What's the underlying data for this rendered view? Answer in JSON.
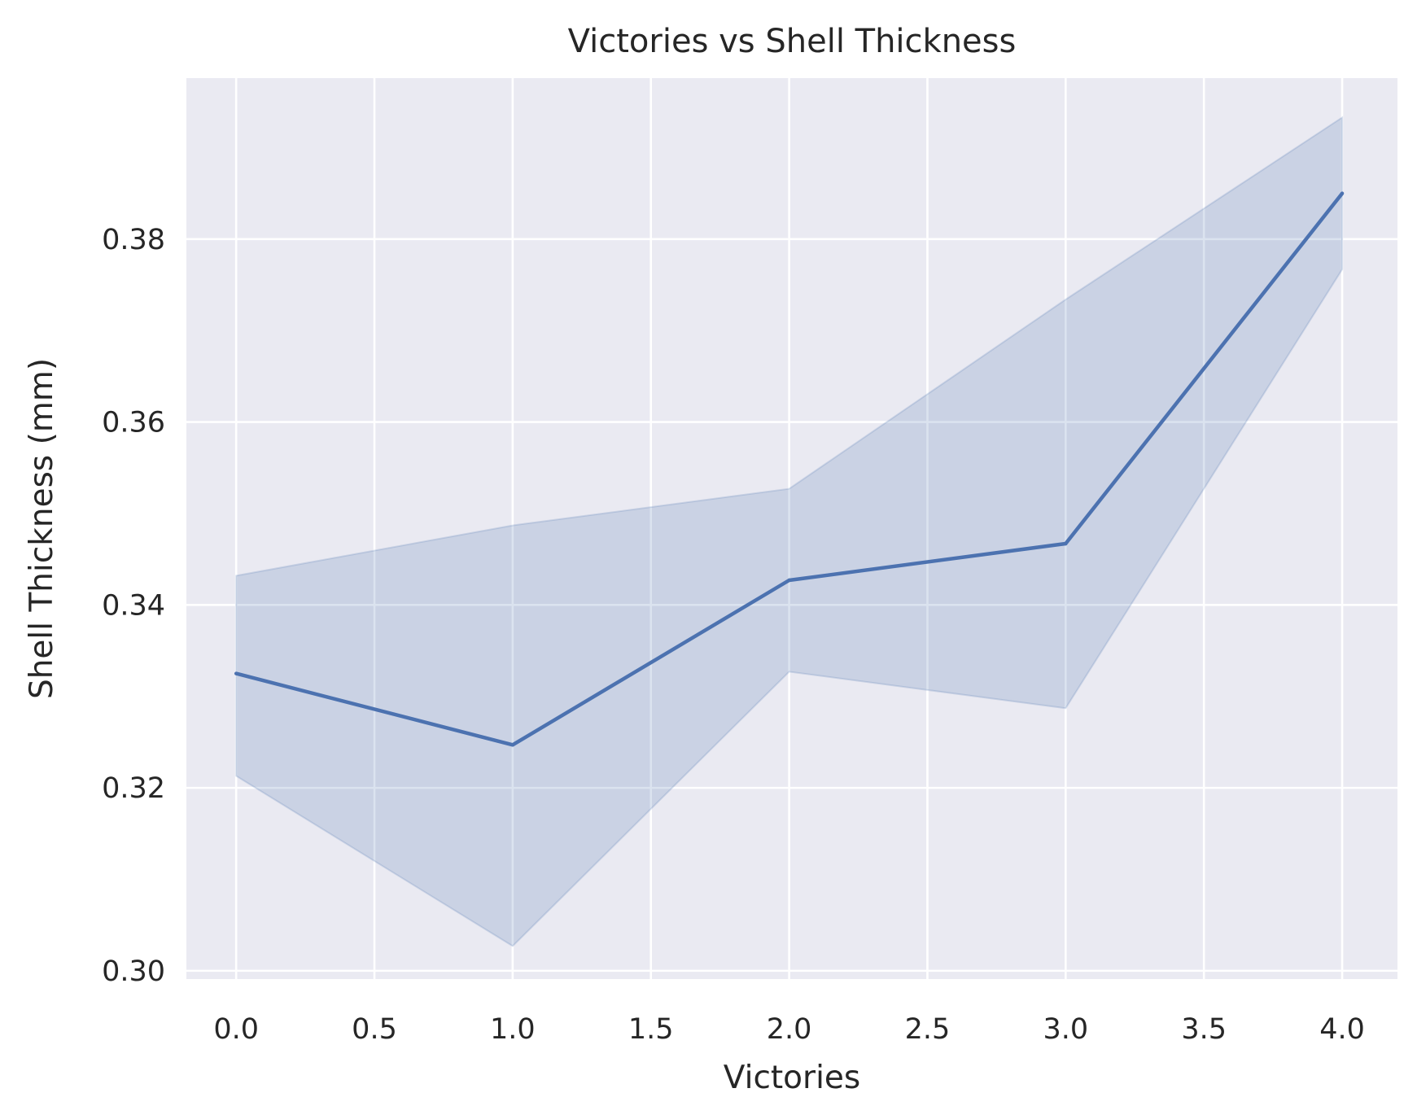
{
  "chart_data": {
    "type": "line",
    "title": "Victories vs Shell Thickness",
    "xlabel": "Victories",
    "ylabel": "Shell Thickness (mm)",
    "x": [
      0,
      1,
      2,
      3,
      4
    ],
    "series": [
      {
        "values": [
          0.3325,
          0.3247,
          0.3427,
          0.3467,
          0.385
        ],
        "ci_lower": [
          0.3213,
          0.3027,
          0.3327,
          0.3287,
          0.3767
        ],
        "ci_upper": [
          0.3432,
          0.3487,
          0.3527,
          0.3734,
          0.3933
        ],
        "color": "#4c72b0"
      }
    ],
    "xlim": [
      -0.18,
      4.2
    ],
    "ylim": [
      0.2991,
      0.3976
    ],
    "xticks": [
      0.0,
      0.5,
      1.0,
      1.5,
      2.0,
      2.5,
      3.0,
      3.5,
      4.0
    ],
    "xtick_labels": [
      "0.0",
      "0.5",
      "1.0",
      "1.5",
      "2.0",
      "2.5",
      "3.0",
      "3.5",
      "4.0"
    ],
    "yticks": [
      0.3,
      0.32,
      0.34,
      0.36,
      0.38
    ],
    "ytick_labels": [
      "0.30",
      "0.32",
      "0.34",
      "0.36",
      "0.38"
    ],
    "grid": true,
    "style": {
      "background": "#eaeaf2",
      "grid_color": "#ffffff",
      "line_color": "#4c72b0",
      "band_color": "#4c72b0"
    }
  }
}
